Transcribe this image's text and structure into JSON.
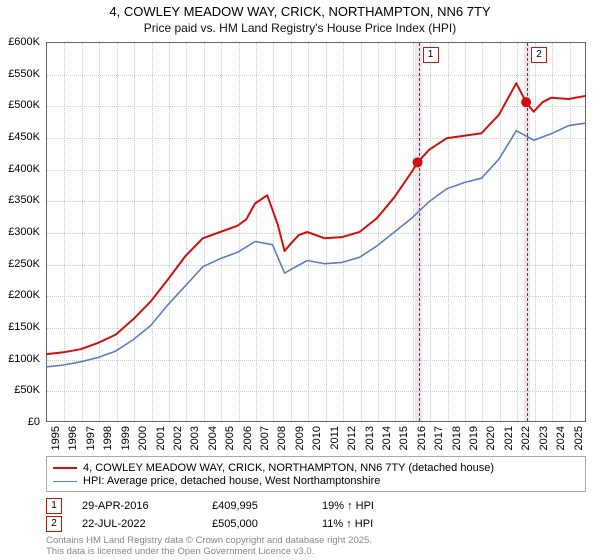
{
  "title_line1": "4, COWLEY MEADOW WAY, CRICK, NORTHAMPTON, NN6 7TY",
  "title_line2": "Price paid vs. HM Land Registry's House Price Index (HPI)",
  "chart": {
    "type": "line",
    "background_color": "#ffffff",
    "grid_color": "#cccccc",
    "border_color": "#666666",
    "xlim": [
      1995,
      2026
    ],
    "ylim": [
      0,
      600000
    ],
    "ytick_step": 50000,
    "yticks": [
      "£0",
      "£50K",
      "£100K",
      "£150K",
      "£200K",
      "£250K",
      "£300K",
      "£350K",
      "£400K",
      "£450K",
      "£500K",
      "£550K",
      "£600K"
    ],
    "x_years": [
      1995,
      1996,
      1997,
      1998,
      1999,
      2000,
      2001,
      2002,
      2003,
      2004,
      2005,
      2006,
      2007,
      2008,
      2009,
      2010,
      2011,
      2012,
      2013,
      2014,
      2015,
      2016,
      2017,
      2018,
      2019,
      2020,
      2021,
      2022,
      2023,
      2024,
      2025
    ],
    "axis_fontsize": 11,
    "series": [
      {
        "name": "4, COWLEY MEADOW WAY, CRICK, NORTHAMPTON, NN6 7TY (detached house)",
        "color": "#d01010",
        "width": 2,
        "years": [
          1995,
          1996,
          1997,
          1998,
          1999,
          2000,
          2001,
          2002,
          2003,
          2004,
          2005,
          2006,
          2006.5,
          2007,
          2007.7,
          2008,
          2008.3,
          2008.7,
          2009,
          2009.5,
          2010,
          2011,
          2012,
          2013,
          2014,
          2015,
          2016,
          2016.33,
          2017,
          2018,
          2019,
          2020,
          2021,
          2022,
          2022.56,
          2023,
          2023.5,
          2024,
          2025,
          2026
        ],
        "values": [
          107000,
          110000,
          115000,
          125000,
          138000,
          162000,
          190000,
          225000,
          262000,
          290000,
          300000,
          310000,
          320000,
          345000,
          358000,
          335000,
          312000,
          270000,
          280000,
          295000,
          300000,
          290000,
          292000,
          300000,
          322000,
          355000,
          395000,
          409995,
          430000,
          448000,
          452000,
          456000,
          485000,
          535000,
          505000,
          490000,
          505000,
          512000,
          510000,
          515000
        ]
      },
      {
        "name": "HPI: Average price, detached house, West Northamptonshire",
        "color": "#5a7fbf",
        "width": 1.6,
        "years": [
          1995,
          1996,
          1997,
          1998,
          1999,
          2000,
          2001,
          2002,
          2003,
          2004,
          2005,
          2006,
          2007,
          2008,
          2008.7,
          2009,
          2010,
          2011,
          2012,
          2013,
          2014,
          2015,
          2016,
          2017,
          2018,
          2019,
          2020,
          2021,
          2022,
          2023,
          2024,
          2025,
          2026
        ],
        "values": [
          87000,
          90000,
          95000,
          102000,
          112000,
          130000,
          152000,
          185000,
          215000,
          245000,
          258000,
          268000,
          285000,
          280000,
          235000,
          240000,
          255000,
          250000,
          252000,
          260000,
          278000,
          300000,
          322000,
          348000,
          368000,
          378000,
          385000,
          415000,
          460000,
          445000,
          455000,
          468000,
          472000
        ]
      }
    ],
    "markers": [
      {
        "n": 1,
        "year": 2016.33,
        "value": 409995,
        "band_start": 2016.15,
        "band_end": 2016.5
      },
      {
        "n": 2,
        "year": 2022.56,
        "value": 505000,
        "band_start": 2022.38,
        "band_end": 2022.73
      }
    ]
  },
  "legend": {
    "items": [
      "4, COWLEY MEADOW WAY, CRICK, NORTHAMPTON, NN6 7TY (detached house)",
      "HPI: Average price, detached house, West Northamptonshire"
    ]
  },
  "sales": [
    {
      "n": "1",
      "date": "29-APR-2016",
      "price": "£409,995",
      "delta": "19% ↑ HPI"
    },
    {
      "n": "2",
      "date": "22-JUL-2022",
      "price": "£505,000",
      "delta": "11% ↑ HPI"
    }
  ],
  "licence": {
    "line1": "Contains HM Land Registry data © Crown copyright and database right 2025.",
    "line2": "This data is licensed under the Open Government Licence v3.0."
  }
}
